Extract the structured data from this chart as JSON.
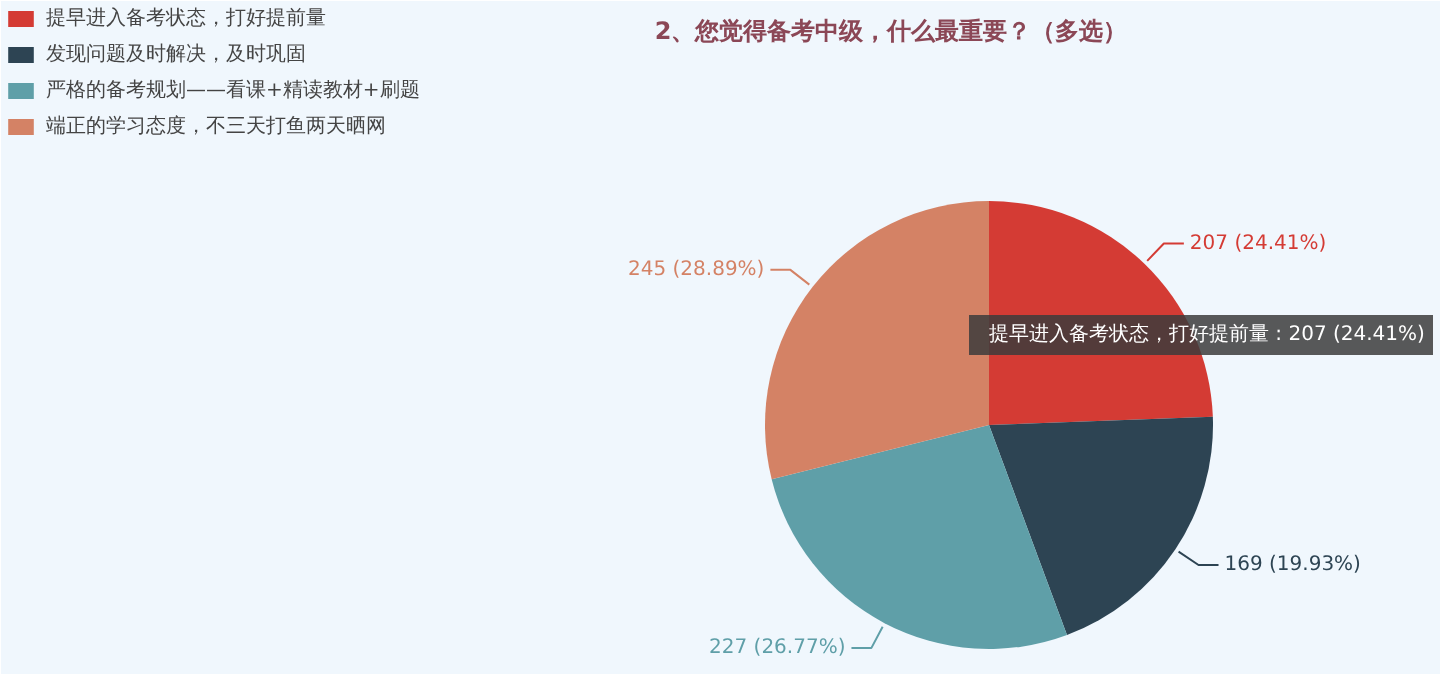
{
  "chart_data": {
    "type": "pie",
    "title": "2、您觉得备考中级，什么最重要？（多选）",
    "categories": [
      "提早进入备考状态，打好提前量",
      "发现问题及时解决，及时巩固",
      "严格的备考规划——看课+精读教材+刷题",
      "端正的学习态度，不三天打鱼两天晒网"
    ],
    "values": [
      207,
      169,
      227,
      245
    ],
    "colors": [
      "#d43b34",
      "#2d4453",
      "#5f9fa8",
      "#d48265"
    ],
    "value_labels": [
      "207 (24.41%)",
      "169 (19.93%)",
      "227 (26.77%)",
      "245 (28.89%)"
    ],
    "annotations": [
      "提早进入备考状态，打好提前量 : 207 (24.41%)"
    ],
    "legend": "top left"
  }
}
